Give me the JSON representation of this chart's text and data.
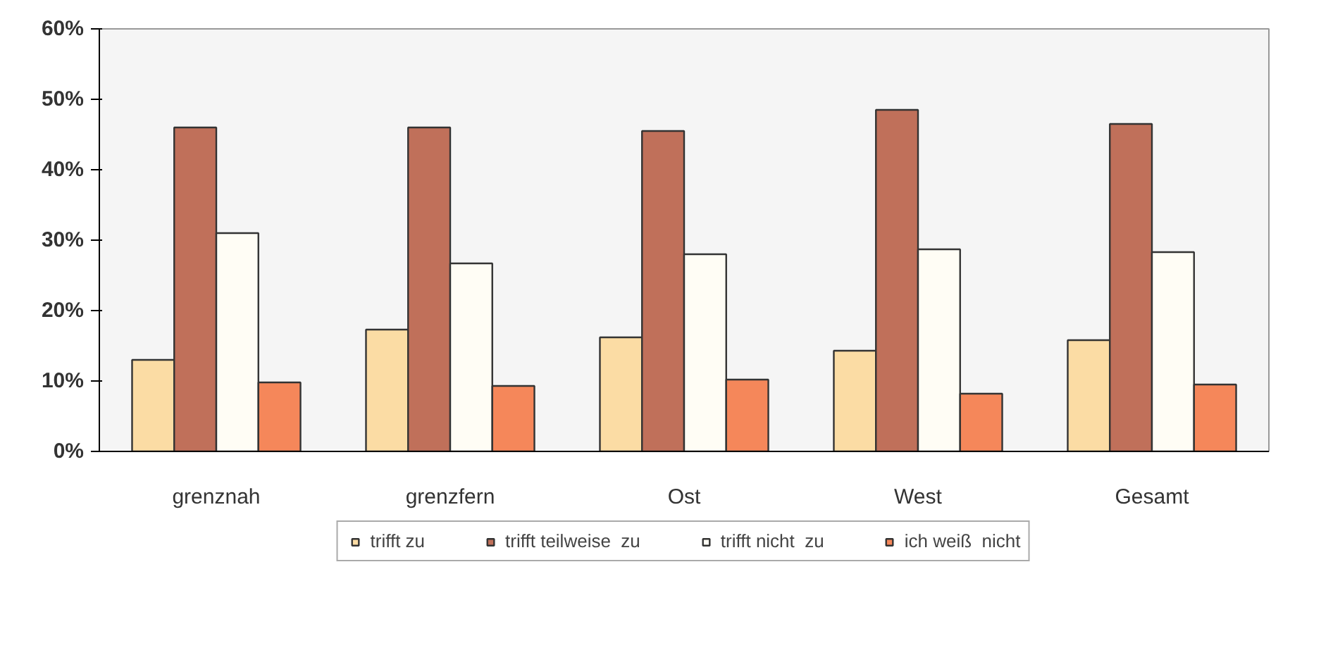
{
  "chart_data": {
    "type": "bar",
    "categories": [
      "grenznah",
      "grenzfern",
      "Ost",
      "West",
      "Gesamt"
    ],
    "series": [
      {
        "name": "trifft zu",
        "color": "#fbdca4",
        "values": [
          13,
          17.3,
          16.2,
          14.3,
          15.8
        ]
      },
      {
        "name": "trifft teilweise  zu",
        "color": "#c0705a",
        "values": [
          46,
          46,
          45.5,
          48.5,
          46.5
        ]
      },
      {
        "name": "trifft nicht  zu",
        "color": "#fffdf5",
        "values": [
          31,
          26.7,
          28,
          28.7,
          28.3
        ]
      },
      {
        "name": "ich weiß  nicht",
        "color": "#f5875a",
        "values": [
          9.8,
          9.3,
          10.2,
          8.2,
          9.5
        ]
      }
    ],
    "ylim": [
      0,
      60
    ],
    "yticks": [
      {
        "value": 0,
        "label": "0%"
      },
      {
        "value": 10,
        "label": "10%"
      },
      {
        "value": 20,
        "label": "20%"
      },
      {
        "value": 30,
        "label": "30%"
      },
      {
        "value": 40,
        "label": "40%"
      },
      {
        "value": 50,
        "label": "50%"
      },
      {
        "value": 60,
        "label": "60%"
      }
    ],
    "grid": false,
    "legend": "bottom"
  }
}
